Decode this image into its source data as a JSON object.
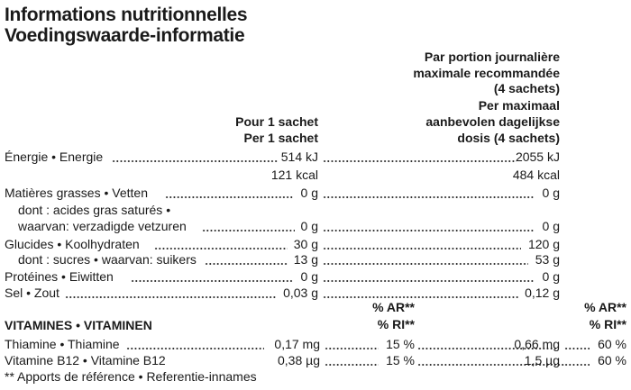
{
  "title": {
    "line1": "Informations nutritionnelles",
    "line2": "Voedingswaarde-informatie"
  },
  "headers": {
    "per_sachet_fr": "Pour 1 sachet",
    "per_sachet_nl": "Per 1 sachet",
    "daily_fr_1": "Par portion journalière",
    "daily_fr_2": "maximale recommandée",
    "daily_fr_3": "(4 sachets)",
    "daily_nl_1": "Per maximaal",
    "daily_nl_2": "aanbevolen dagelijkse",
    "daily_nl_3": "dosis (4 sachets)"
  },
  "nutrients": {
    "energy_label": "Énergie • Energie",
    "energy_kj": "514 kJ",
    "energy_kj_daily": "2055 kJ",
    "energy_kcal": "121 kcal",
    "energy_kcal_daily": "484 kcal",
    "fat_label": "Matières grasses • Vetten",
    "fat": "0 g",
    "fat_daily": "0 g",
    "satfat_label_1": "dont :  acides gras saturés •",
    "satfat_label_2": "waarvan: verzadigde vetzuren",
    "satfat": "0 g",
    "satfat_daily": "0 g",
    "carbs_label": "Glucides • Koolhydraten",
    "carbs": "30 g",
    "carbs_daily": "120 g",
    "sugars_label": "dont : sucres • waarvan: suikers",
    "sugars": "13 g",
    "sugars_daily": "53 g",
    "protein_label": "Protéines • Eiwitten",
    "protein": "0 g",
    "protein_daily": "0 g",
    "salt_label": "Sel • Zout",
    "salt": "0,03 g",
    "salt_daily": "0,12 g"
  },
  "vitamins": {
    "heading": "VITAMINES • VITAMINEN",
    "ar_header": "% AR**",
    "ri_header": "% RI**",
    "thiamine_label": "Thiamine • Thiamine",
    "thiamine": "0,17 mg",
    "thiamine_pct": "15 %",
    "thiamine_daily": "0,66 mg",
    "thiamine_daily_pct": "60 %",
    "b12_label": "Vitamine B12 • Vitamine B12",
    "b12": "0,38 µg",
    "b12_pct": "15 %",
    "b12_daily": "1,5 µg",
    "b12_daily_pct": "60 %"
  },
  "footnote": "** Apports de référence • Referentie-innames"
}
